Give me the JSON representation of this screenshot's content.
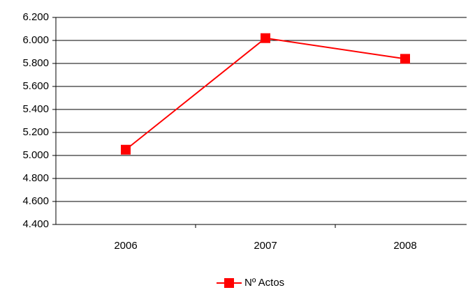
{
  "chart_data": {
    "type": "line",
    "categories": [
      "2006",
      "2007",
      "2008"
    ],
    "series": [
      {
        "name": "Nº Actos",
        "color": "#ff0000",
        "values": [
          5050,
          6020,
          5840
        ]
      }
    ],
    "ylim": [
      4400,
      6200
    ],
    "yticks": [
      {
        "value": 4400,
        "label": "4.400"
      },
      {
        "value": 4600,
        "label": "4.600"
      },
      {
        "value": 4800,
        "label": "4.800"
      },
      {
        "value": 5000,
        "label": "5.000"
      },
      {
        "value": 5200,
        "label": "5.200"
      },
      {
        "value": 5400,
        "label": "5.400"
      },
      {
        "value": 5600,
        "label": "5.600"
      },
      {
        "value": 5800,
        "label": "5.800"
      },
      {
        "value": 6000,
        "label": "6.000"
      },
      {
        "value": 6200,
        "label": "6.200"
      }
    ],
    "grid": true,
    "legend": "bottom"
  }
}
